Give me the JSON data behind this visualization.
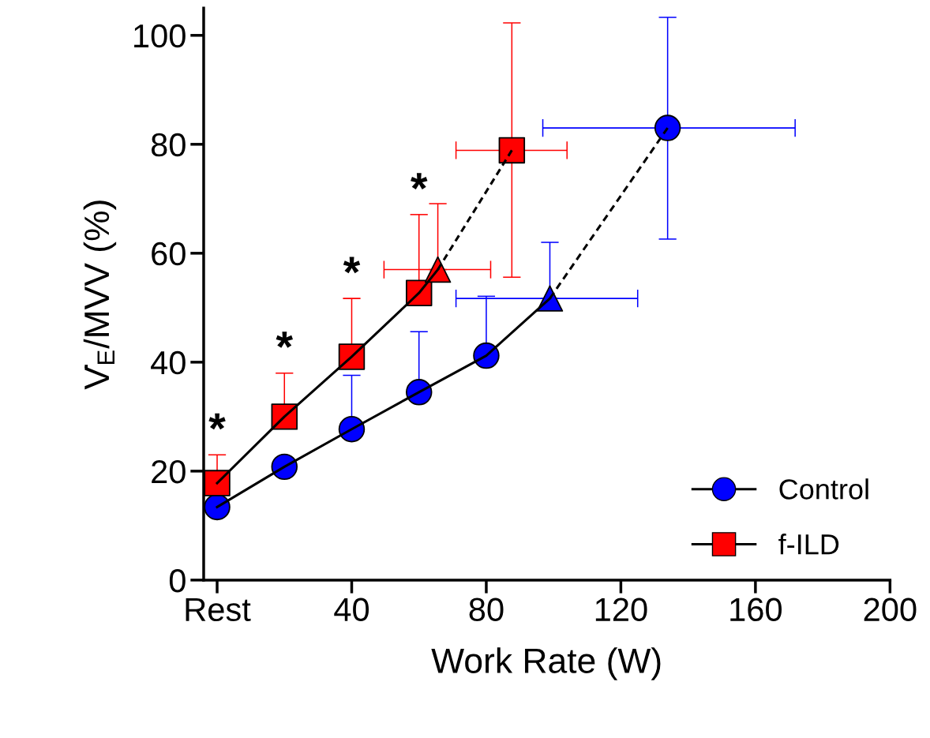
{
  "chart_data": {
    "type": "scatter",
    "xlabel": "Work Rate (W)",
    "ylabel": "V̇$_{E}$/MVV (%)",
    "xlim": [
      -4,
      200
    ],
    "ylim": [
      0,
      105
    ],
    "xticks": [
      {
        "value": 0,
        "label": "Rest"
      },
      40,
      80,
      120,
      160,
      200
    ],
    "yticks": [
      0,
      20,
      40,
      60,
      80,
      100
    ],
    "grid": false,
    "legend": "bottom right",
    "series": [
      {
        "type": "line",
        "color": "#000000",
        "marker": "none",
        "line_style": "solid",
        "x": [
          0,
          20,
          40,
          60,
          80,
          98.9
        ],
        "values": [
          13.4,
          20.8,
          27.7,
          34.5,
          41.2,
          51.7
        ]
      },
      {
        "type": "line",
        "color": "#000000",
        "marker": "none",
        "line_style": "dashed",
        "x": [
          98.9,
          133.9
        ],
        "values": [
          51.7,
          83
        ]
      },
      {
        "type": "line",
        "color": "#000000",
        "marker": "none",
        "line_style": "solid",
        "x": [
          0,
          20,
          40,
          60,
          65.6
        ],
        "values": [
          17.8,
          30,
          41,
          52.7,
          57
        ]
      },
      {
        "type": "line",
        "color": "#000000",
        "marker": "none",
        "line_style": "dashed",
        "x": [
          65.6,
          87.6
        ],
        "values": [
          57,
          78.9
        ]
      },
      {
        "type": "scatter",
        "name": "Control",
        "color": "#0000ff",
        "marker": "circle",
        "x": [
          0,
          20,
          40,
          60,
          80,
          133.9
        ],
        "values": [
          13.4,
          20.8,
          27.7,
          34.5,
          41.2,
          83
        ],
        "errors": [
          null,
          null,
          [
            27.7,
            37.6
          ],
          [
            34.5,
            45.6
          ],
          [
            41.2,
            52.1
          ],
          [
            62.6,
            103.3
          ]
        ],
        "xerrors": [
          null,
          null,
          null,
          null,
          null,
          [
            96.8,
            171.8
          ]
        ]
      },
      {
        "type": "scatter",
        "color": "#0000ff",
        "marker": "triangle",
        "x": [
          98.9
        ],
        "values": [
          51.7
        ],
        "errors": [
          [
            51.7,
            62
          ]
        ],
        "xerrors": [
          [
            71,
            125
          ]
        ]
      },
      {
        "type": "scatter",
        "name": "f-ILD",
        "color": "#ff0000",
        "marker": "square",
        "x": [
          0,
          20,
          40,
          60,
          87.6
        ],
        "values": [
          17.8,
          30,
          41,
          52.7,
          78.9
        ],
        "errors": [
          [
            17.8,
            23
          ],
          [
            30,
            38
          ],
          [
            41,
            51.7
          ],
          [
            52.7,
            67.1
          ],
          [
            55.6,
            102.3
          ]
        ],
        "xerrors": [
          null,
          null,
          null,
          null,
          [
            71,
            104
          ]
        ]
      },
      {
        "type": "scatter",
        "color": "#ff0000",
        "marker": "triangle",
        "x": [
          65.6
        ],
        "values": [
          57
        ],
        "errors": [
          [
            57,
            69.1
          ]
        ],
        "xerrors": [
          [
            49.6,
            81.3
          ]
        ]
      }
    ],
    "annotations": [
      {
        "text": "*",
        "x": 0,
        "y": 23
      },
      {
        "text": "*",
        "x": 20,
        "y": 38
      },
      {
        "text": "*",
        "x": 40,
        "y": 51.7
      },
      {
        "text": "*",
        "x": 60,
        "y": 67.1
      }
    ]
  }
}
